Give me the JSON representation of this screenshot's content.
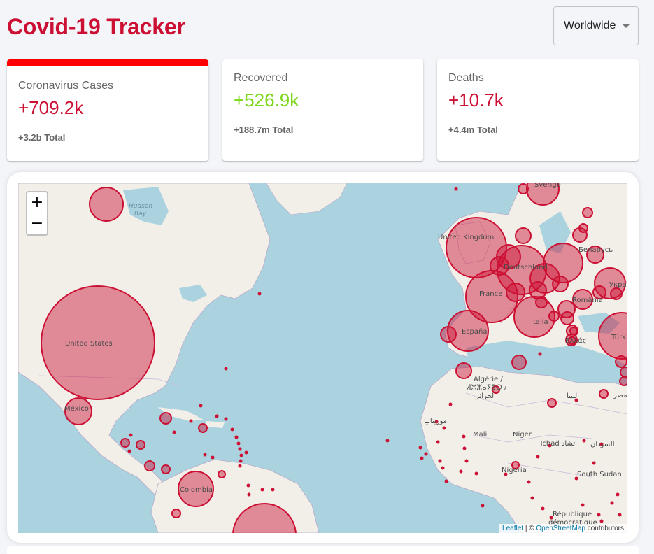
{
  "header": {
    "title": "Covid-19 Tracker"
  },
  "country_select": {
    "value": "Worldwide",
    "caret_icon": "caret-down-icon"
  },
  "cards": [
    {
      "label": "Coronavirus Cases",
      "value": "+709.2k",
      "total": "+3.2b Total",
      "color": "#cc1034",
      "selected": true
    },
    {
      "label": "Recovered",
      "value": "+526.9k",
      "total": "+188.7m Total",
      "color": "#7dd71d",
      "selected": false
    },
    {
      "label": "Deaths",
      "value": "+10.7k",
      "total": "+4.4m Total",
      "color": "#cc1034",
      "selected": false
    }
  ],
  "map": {
    "zoom_in": "+",
    "zoom_out": "−",
    "attribution": {
      "leaflet": "Leaflet",
      "sep": " | © ",
      "osm": "OpenStreetMap",
      "suffix": " contributors"
    },
    "circle_color": "#cc1034",
    "labels": {
      "hudson_bay_1": "Hudson",
      "hudson_bay_2": "Bay",
      "united_states": "United States",
      "mexico": "México",
      "colombia": "Colombia",
      "united_kingdom": "United Kingdom",
      "france": "France",
      "deutschland": "Deutschland",
      "espana": "España",
      "italia": "Italia",
      "romania": "România",
      "belarus": "Беларусь",
      "ukraine": "Украї",
      "turkey": "Türk",
      "algerie_1": "Algérie /",
      "algerie_2": "ⵍⵣⵣⴰⵢⴻⵔ /",
      "algerie_3": "الجزائر",
      "libya": "ليبيا",
      "morocco": "موريتانيا",
      "mali": "Mali",
      "niger": "Niger",
      "tchad": "Tchad تشاد",
      "sudan": "السودان",
      "nigeria": "Nigeria",
      "south_sudan": "South Sudan",
      "republique_1": "République",
      "republique_2": "démocratique",
      "egypt": "مصر",
      "hellas": "Ελλάς",
      "sverige": "Sverige"
    }
  }
}
